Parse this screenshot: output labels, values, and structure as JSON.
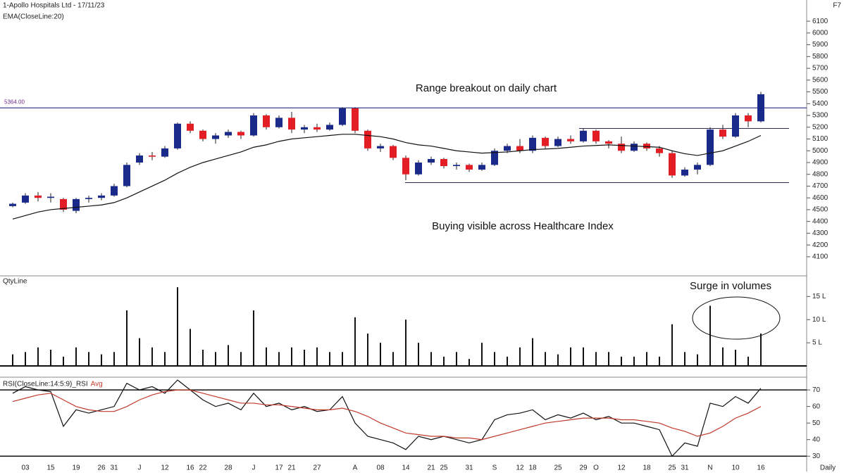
{
  "chart_data": [
    {
      "type": "candlestick",
      "title": "1-Apollo Hospitals Ltd - 17/11/23",
      "corner_text": "F7",
      "annotations": [
        "Range breakout on daily chart",
        "Buying visible across Healthcare Index"
      ],
      "hlines": [
        {
          "value": 5364,
          "label": "5364.00"
        }
      ],
      "range_low": 4730,
      "range_high": 5190,
      "up_color": "#1a2a8a",
      "down_color": "#e31e24",
      "ylim": [
        3950,
        6280
      ],
      "yticks": [
        4100,
        4200,
        4300,
        4400,
        4500,
        4600,
        4700,
        4800,
        4900,
        5000,
        5100,
        5200,
        5300,
        5400,
        5500,
        5600,
        5700,
        5800,
        5900,
        6000,
        6100
      ],
      "open": [
        4530,
        4560,
        4620,
        4600,
        4590,
        4490,
        4590,
        4600,
        4620,
        4700,
        4900,
        4960,
        4950,
        5020,
        5230,
        5170,
        5100,
        5130,
        5160,
        5130,
        5300,
        5200,
        5280,
        5180,
        5200,
        5180,
        5220,
        5360,
        5170,
        5020,
        5040,
        4940,
        4800,
        4900,
        4930,
        4870,
        4880,
        4840,
        4880,
        5000,
        5040,
        5000,
        5110,
        5040,
        5100,
        5080,
        5170,
        5080,
        5060,
        5000,
        5060,
        5020,
        4980,
        4790,
        4840,
        4880,
        5180,
        5120,
        5300,
        5250
      ],
      "high": [
        4560,
        4640,
        4650,
        4640,
        4600,
        4600,
        4620,
        4640,
        4720,
        4900,
        4980,
        4990,
        5040,
        5240,
        5250,
        5180,
        5150,
        5180,
        5170,
        5320,
        5310,
        5300,
        5330,
        5220,
        5230,
        5240,
        5370,
        5370,
        5180,
        5060,
        5050,
        4960,
        4920,
        4950,
        4940,
        4900,
        4890,
        4900,
        5020,
        5060,
        5100,
        5130,
        5120,
        5120,
        5130,
        5190,
        5180,
        5090,
        5120,
        5080,
        5070,
        5040,
        5000,
        4860,
        4900,
        5200,
        5220,
        5320,
        5320,
        5500
      ],
      "low": [
        4520,
        4550,
        4570,
        4560,
        4480,
        4470,
        4560,
        4580,
        4610,
        4690,
        4880,
        4920,
        4940,
        5010,
        5150,
        5080,
        5060,
        5110,
        5100,
        5120,
        5180,
        5190,
        5150,
        5150,
        5160,
        5170,
        5210,
        5150,
        5000,
        4990,
        4920,
        4750,
        4790,
        4880,
        4850,
        4840,
        4820,
        4830,
        4870,
        4980,
        4980,
        4980,
        5020,
        5030,
        5060,
        5070,
        5060,
        5020,
        4980,
        4990,
        5000,
        4950,
        4770,
        4780,
        4800,
        4870,
        5100,
        5110,
        5200,
        5240
      ],
      "close": [
        4550,
        4620,
        4600,
        4610,
        4500,
        4590,
        4600,
        4620,
        4700,
        4880,
        4960,
        4950,
        5020,
        5230,
        5170,
        5100,
        5130,
        5160,
        5130,
        5300,
        5200,
        5280,
        5180,
        5200,
        5180,
        5220,
        5360,
        5170,
        5020,
        5040,
        4940,
        4800,
        4900,
        4930,
        4870,
        4880,
        4840,
        4880,
        5000,
        5040,
        5000,
        5110,
        5040,
        5100,
        5080,
        5170,
        5080,
        5060,
        5000,
        5060,
        5020,
        4980,
        4790,
        4840,
        4880,
        5180,
        5120,
        5300,
        5250,
        5480
      ],
      "series": [
        {
          "name": "EMA(CloseLine:20)",
          "color": "#111111",
          "values": [
            4420,
            4450,
            4480,
            4500,
            4510,
            4520,
            4530,
            4540,
            4560,
            4600,
            4650,
            4700,
            4750,
            4810,
            4860,
            4900,
            4930,
            4960,
            4990,
            5030,
            5050,
            5080,
            5100,
            5110,
            5120,
            5130,
            5140,
            5140,
            5130,
            5120,
            5100,
            5070,
            5050,
            5040,
            5020,
            5000,
            4990,
            4980,
            4985,
            4990,
            5000,
            5010,
            5015,
            5020,
            5030,
            5040,
            5045,
            5050,
            5045,
            5040,
            5035,
            5030,
            5000,
            4975,
            4960,
            4980,
            5000,
            5040,
            5080,
            5130
          ]
        }
      ]
    },
    {
      "type": "bar",
      "title": "QtyLine",
      "annotations": [
        "Surge in volumes"
      ],
      "color": "#111111",
      "ylim": [
        0,
        19
      ],
      "yticks": [
        {
          "value": 5,
          "label": "5 L"
        },
        {
          "value": 10,
          "label": "10 L"
        },
        {
          "value": 15,
          "label": "15 L"
        }
      ],
      "values": [
        2.5,
        3,
        4,
        3.5,
        2,
        4,
        3,
        2.5,
        3,
        12,
        6,
        4,
        3,
        17,
        8,
        3.5,
        3,
        4.5,
        3,
        12,
        4,
        3,
        4,
        3.5,
        4,
        3,
        3,
        10.5,
        7,
        5,
        3,
        10,
        5,
        3,
        2,
        3,
        1.5,
        5,
        3,
        2,
        4,
        6,
        3,
        2.5,
        4,
        4,
        3,
        3,
        2,
        2,
        3,
        2,
        9,
        3,
        2.5,
        13,
        4,
        3.5,
        2,
        7
      ]
    },
    {
      "type": "line",
      "x_label": "Daily",
      "categories": [
        null,
        "03",
        null,
        "15",
        null,
        "19",
        null,
        "26",
        "31",
        null,
        "J",
        null,
        "12",
        null,
        "16",
        "22",
        null,
        "28",
        null,
        "J",
        null,
        "17",
        "21",
        null,
        "27",
        null,
        null,
        "A",
        null,
        "08",
        null,
        "14",
        null,
        "21",
        "25",
        null,
        "31",
        null,
        "S",
        null,
        "12",
        "18",
        null,
        "25",
        null,
        "29",
        "O",
        null,
        "12",
        null,
        "18",
        null,
        "25",
        "31",
        null,
        "N",
        null,
        "10",
        null,
        "16"
      ],
      "ylim": [
        25,
        76
      ],
      "yticks": [
        30,
        40,
        50,
        60,
        70
      ],
      "levels": [
        30,
        70
      ],
      "series": [
        {
          "name": "RSI(CloseLine:14:5:9)_RSI",
          "color": "#111111",
          "values": [
            68,
            72,
            70,
            69,
            48,
            58,
            56,
            58,
            60,
            74,
            70,
            72,
            68,
            76,
            70,
            64,
            60,
            62,
            58,
            68,
            60,
            62,
            58,
            60,
            57,
            58,
            66,
            50,
            42,
            40,
            38,
            34,
            42,
            40,
            42,
            40,
            38,
            40,
            52,
            55,
            56,
            58,
            52,
            55,
            53,
            56,
            52,
            54,
            50,
            50,
            48,
            46,
            30,
            38,
            36,
            62,
            60,
            66,
            62,
            71
          ]
        },
        {
          "name": "Avg",
          "color": "#c0392b",
          "values": [
            63,
            65,
            67,
            68,
            64,
            60,
            58,
            57,
            57,
            60,
            64,
            67,
            69,
            70,
            70,
            68,
            66,
            64,
            62,
            62,
            61,
            61,
            60,
            59,
            58,
            58,
            59,
            57,
            54,
            50,
            47,
            44,
            43,
            42,
            42,
            41,
            41,
            40,
            42,
            44,
            46,
            48,
            50,
            51,
            52,
            53,
            53,
            53,
            52,
            52,
            51,
            50,
            47,
            45,
            42,
            44,
            48,
            53,
            56,
            60
          ]
        }
      ]
    }
  ]
}
